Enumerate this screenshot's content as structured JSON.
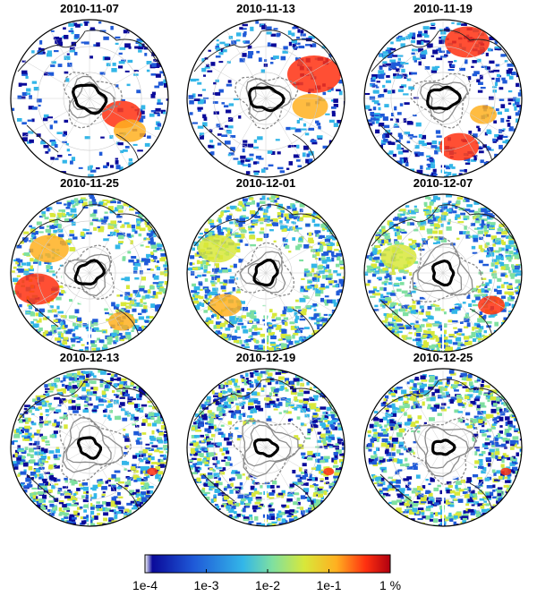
{
  "panels": [
    {
      "date": "2010-11-07"
    },
    {
      "date": "2010-11-13"
    },
    {
      "date": "2010-11-19"
    },
    {
      "date": "2010-11-25"
    },
    {
      "date": "2010-12-01"
    },
    {
      "date": "2010-12-07"
    },
    {
      "date": "2010-12-13"
    },
    {
      "date": "2010-12-19"
    },
    {
      "date": "2010-12-25"
    }
  ],
  "colorbar": {
    "tick_labels": [
      "1e-4",
      "1e-3",
      "1e-2",
      "1e-1",
      "1 %"
    ],
    "colors": [
      "#ffffff",
      "#0a0a9a",
      "#1f5ad8",
      "#33b6e8",
      "#7fe0a0",
      "#d8e83a",
      "#ffb020",
      "#ff3010",
      "#b00010"
    ]
  }
}
